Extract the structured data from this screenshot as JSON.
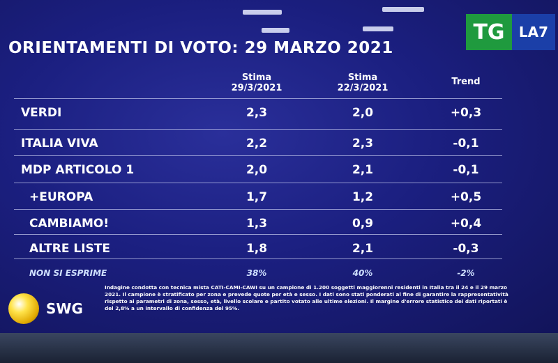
{
  "header": {
    "title": "ORIENTAMENTI DI VOTO: 29 MARZO 2021",
    "logo_left": "TG",
    "logo_right": "LA7"
  },
  "table": {
    "columns": [
      [
        "Stima",
        "29/3/2021"
      ],
      [
        "Stima",
        "22/3/2021"
      ],
      [
        "Trend"
      ]
    ],
    "rows": [
      [
        "VERDI",
        "2,3",
        "2,0",
        "+0,3"
      ],
      [
        "ITALIA VIVA",
        "2,2",
        "2,3",
        "-0,1"
      ],
      [
        "MDP ARTICOLO 1",
        "2,0",
        "2,1",
        "-0,1"
      ],
      [
        "+EUROPA",
        "1,7",
        "1,2",
        "+0,5"
      ],
      [
        "CAMBIAMO!",
        "1,3",
        "0,9",
        "+0,4"
      ],
      [
        "ALTRE LISTE",
        "1,8",
        "2,1",
        "-0,3"
      ],
      [
        "NON SI ESPRIME",
        "38%",
        "40%",
        "-2%"
      ]
    ]
  },
  "footer": {
    "brand": "SWG",
    "note": "Indagine condotta con tecnica mista CATI-CAMI-CAWI su un campione di 1.200 soggetti maggiorenni residenti in Italia tra il 24 e il 29 marzo 2021. Il campione è stratificato per zona e prevede quote per età e sesso. I dati sono stati ponderati al fine di garantire la rappresentatività rispetto ai parametri di zona, sesso, età, livello scolare e partito votato alle ultime elezioni. Il margine d'errore statistico dei dati riportati è del 2,8% a un intervallo di confidenza del 95%."
  }
}
